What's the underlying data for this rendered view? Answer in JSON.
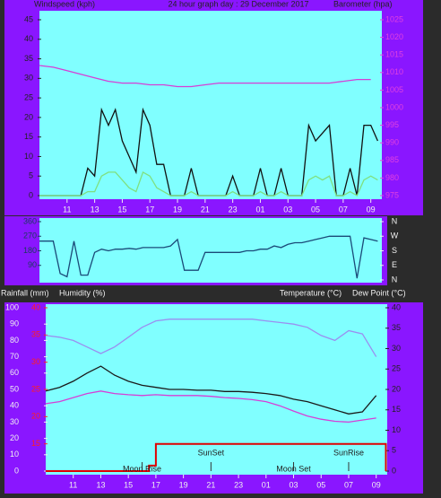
{
  "chart_data": [
    {
      "type": "line",
      "title": "24 hour graph day : 29 December 2017",
      "ylabel": "Windspeed (kph)",
      "y2label": "Barometer (hpa)",
      "xlim": [
        9,
        33.8
      ],
      "xticks": [
        11,
        13,
        15,
        17,
        19,
        21,
        23,
        {
          "value": 25,
          "label": "01"
        },
        {
          "value": 27,
          "label": "03"
        },
        {
          "value": 29,
          "label": "05"
        },
        {
          "value": 31,
          "label": "07"
        },
        {
          "value": 33,
          "label": "09"
        }
      ],
      "ylim": [
        0,
        45
      ],
      "yticks": [
        0,
        5,
        10,
        15,
        20,
        25,
        30,
        35,
        40,
        45
      ],
      "y2lim": [
        975,
        1025
      ],
      "y2ticks": [
        975,
        980,
        985,
        990,
        995,
        1000,
        1005,
        1010,
        1015,
        1020,
        1025
      ],
      "x": [
        9,
        9.5,
        10,
        10.5,
        11,
        11.5,
        12,
        12.5,
        13,
        13.5,
        14,
        14.5,
        15,
        15.5,
        16,
        16.5,
        17,
        17.5,
        18,
        18.5,
        19,
        19.5,
        20,
        20.5,
        21,
        21.5,
        22,
        22.5,
        23,
        23.5,
        24,
        24.5,
        25,
        25.5,
        26,
        26.5,
        27,
        27.5,
        28,
        28.5,
        29,
        29.5,
        30,
        30.5,
        31,
        31.5,
        32,
        32.5,
        33,
        33.5
      ],
      "series": [
        {
          "color": "#111111",
          "values": [
            0,
            0,
            0,
            0,
            0,
            0,
            0,
            7,
            5,
            22,
            18,
            22,
            14,
            10,
            6,
            22,
            18,
            8,
            8,
            0,
            0,
            0,
            7,
            0,
            0,
            0,
            0,
            0,
            5,
            0,
            0,
            0,
            7,
            0,
            0,
            7,
            0,
            0,
            0,
            18,
            14,
            16,
            18,
            0,
            0,
            7,
            0,
            18,
            18,
            14
          ]
        },
        {
          "color": "#7fe07f",
          "values": [
            0,
            0,
            0,
            0,
            0,
            0,
            0,
            1,
            1,
            5,
            6,
            6,
            4,
            2,
            1,
            6,
            5,
            2,
            1,
            0,
            0,
            0,
            1,
            0,
            0,
            0,
            0,
            0,
            1,
            0,
            0,
            0,
            1,
            0,
            0,
            1,
            0,
            0,
            0,
            4,
            5,
            4,
            5,
            0,
            0,
            1,
            0,
            4,
            5,
            4
          ]
        },
        {
          "color": "#d63ed6",
          "axis": "y2",
          "x": [
            9,
            10,
            11,
            12,
            13,
            14,
            15,
            16,
            17,
            18,
            19,
            20,
            21,
            22,
            23,
            24,
            25,
            26,
            27,
            28,
            29,
            30,
            31,
            32,
            33
          ],
          "values": [
            1012,
            1011.5,
            1010.5,
            1009.5,
            1008.5,
            1007.5,
            1007,
            1007,
            1006.5,
            1006.5,
            1006,
            1006,
            1006.5,
            1007,
            1007,
            1007,
            1007,
            1007,
            1007,
            1007,
            1007,
            1007,
            1007.5,
            1008,
            1008
          ]
        }
      ]
    },
    {
      "type": "line",
      "xlim": [
        9,
        33.8
      ],
      "ylim": [
        0,
        360
      ],
      "yticks": [
        90,
        180,
        270,
        360
      ],
      "y2lim": [
        0,
        360
      ],
      "y2ticks": [
        {
          "value": 360,
          "label": "N"
        },
        {
          "value": 270,
          "label": "W"
        },
        {
          "value": 180,
          "label": "S"
        },
        {
          "value": 90,
          "label": "E"
        },
        {
          "value": 0,
          "label": "N"
        }
      ],
      "x": [
        9,
        9.5,
        10,
        10.5,
        11,
        11.5,
        12,
        12.5,
        13,
        13.5,
        14,
        14.5,
        15,
        15.5,
        16,
        16.5,
        17,
        17.5,
        18,
        18.5,
        19,
        19.5,
        20,
        20.5,
        21,
        21.5,
        22,
        22.5,
        23,
        23.5,
        24,
        24.5,
        25,
        25.5,
        26,
        26.5,
        27,
        27.5,
        28,
        28.5,
        29,
        29.5,
        30,
        30.5,
        31,
        31.5,
        32,
        32.5,
        33,
        33.5
      ],
      "series": [
        {
          "color": "#1b4a78",
          "values": [
            240,
            240,
            240,
            40,
            20,
            240,
            30,
            30,
            170,
            190,
            180,
            190,
            190,
            195,
            190,
            200,
            200,
            200,
            200,
            210,
            250,
            60,
            60,
            60,
            170,
            170,
            170,
            170,
            170,
            170,
            180,
            180,
            190,
            190,
            210,
            200,
            220,
            230,
            230,
            240,
            250,
            260,
            270,
            270,
            270,
            270,
            10,
            260,
            250,
            240
          ]
        }
      ]
    },
    {
      "type": "line",
      "rain_label": "Rainfall (mm)",
      "ylabel": "Humidity (%)",
      "y2label": "Temperature (°C)",
      "y2label_2": "Dew Point (°C)",
      "xlim": [
        9,
        33.8
      ],
      "xticks": [
        11,
        13,
        15,
        17,
        19,
        21,
        23,
        {
          "value": 25,
          "label": "01"
        },
        {
          "value": 27,
          "label": "03"
        },
        {
          "value": 29,
          "label": "05"
        },
        {
          "value": 31,
          "label": "07"
        },
        {
          "value": 33,
          "label": "09"
        }
      ],
      "ylim": [
        0,
        100
      ],
      "yticks": [
        0,
        10,
        20,
        30,
        40,
        50,
        60,
        70,
        80,
        90,
        100
      ],
      "y2lim": [
        0,
        40
      ],
      "y2ticks": [
        0,
        5,
        10,
        15,
        20,
        25,
        30,
        35,
        40
      ],
      "y3lim": [
        10,
        40
      ],
      "y3ticks": [
        15,
        20,
        25,
        30,
        35,
        40
      ],
      "x": [
        9,
        10,
        11,
        12,
        13,
        14,
        15,
        16,
        17,
        18,
        19,
        20,
        21,
        22,
        23,
        24,
        25,
        26,
        27,
        28,
        29,
        30,
        31,
        32,
        33
      ],
      "series": [
        {
          "color": "#9a8ff0",
          "values": [
            83,
            82,
            80,
            76,
            72,
            76,
            82,
            88,
            92,
            93,
            93,
            93,
            93,
            93,
            93,
            93,
            92,
            91,
            90,
            88,
            83,
            80,
            86,
            84,
            70
          ]
        },
        {
          "color": "#1a1a1a",
          "axis": "y2",
          "values": [
            19.6,
            20.5,
            22,
            24,
            25.7,
            23.5,
            22,
            21,
            20.5,
            20,
            20,
            19.8,
            19.8,
            19.5,
            19.5,
            19.3,
            19,
            18.5,
            17.6,
            17,
            16,
            15,
            14,
            14.5,
            18.5
          ]
        },
        {
          "color": "#d63ed6",
          "axis": "y2",
          "values": [
            16.5,
            17,
            18,
            19,
            19.6,
            19,
            18.7,
            18.5,
            18.7,
            18.5,
            18.5,
            18.5,
            18.3,
            18,
            17.8,
            17.5,
            17,
            16,
            14.7,
            13.5,
            12.7,
            12.2,
            12,
            12.5,
            13
          ]
        },
        {
          "color": "#e00000",
          "axis": "y3",
          "x": [
            9,
            16.5,
            16.5,
            17,
            17,
            33.7,
            33.7
          ],
          "values": [
            10,
            10,
            11,
            11,
            15,
            15,
            10
          ]
        }
      ],
      "annotations": [
        {
          "x": 16,
          "text": "Moon Rise"
        },
        {
          "x": 21,
          "text": "SunSet"
        },
        {
          "x": 27,
          "text": "Moon Set"
        },
        {
          "x": 31,
          "text": "SunRise"
        }
      ]
    }
  ]
}
